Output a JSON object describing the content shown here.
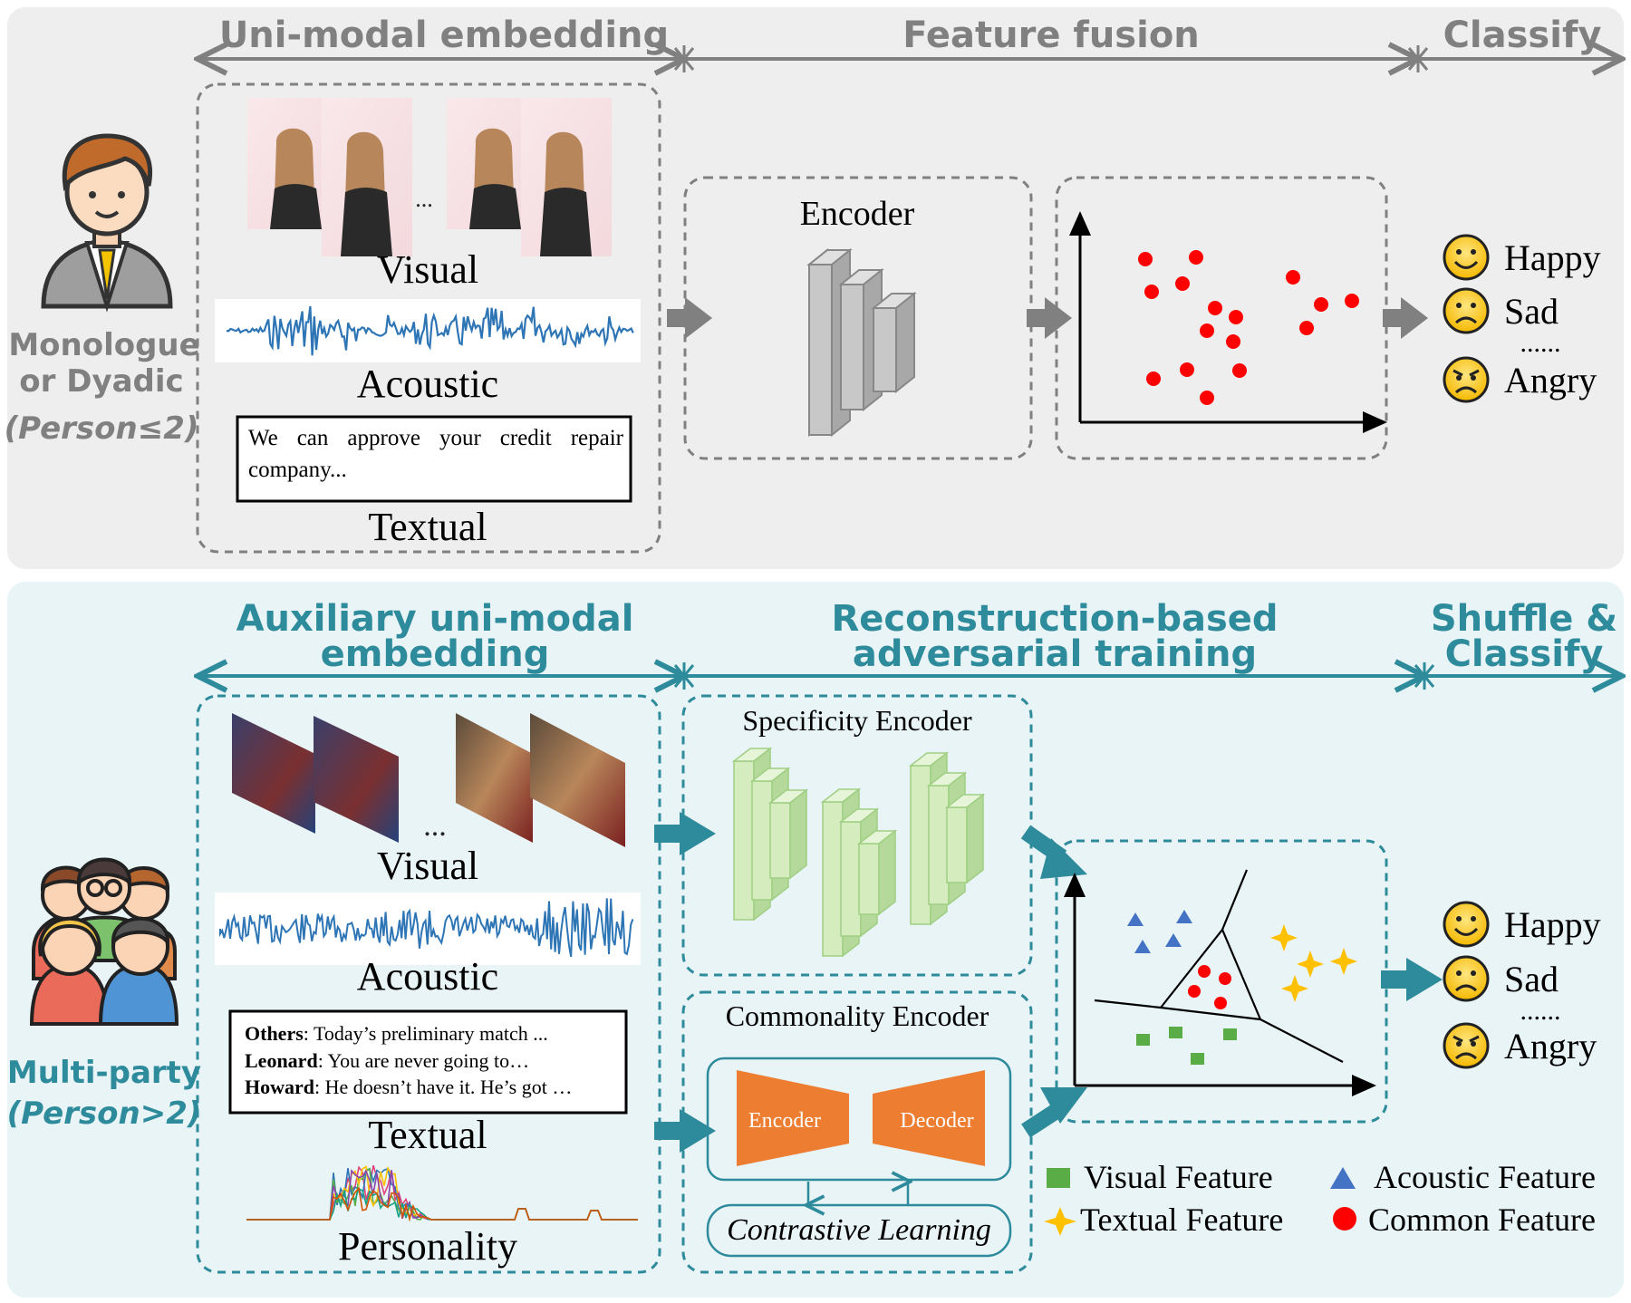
{
  "colors": {
    "top_panel_bg": "#eeeeee",
    "bottom_panel_bg": "#e9f4f7",
    "top_accent": "#808080",
    "bottom_accent": "#2e8b9b",
    "encoder_gray": "#c8c8c8",
    "encoder_green": "#cfe8b8",
    "autoencoder_orange": "#ed7d31",
    "point_red": "#ff0000",
    "feature_green": "#5aad46",
    "feature_blue": "#4472c4",
    "feature_gold": "#ffc000",
    "waveform_blue": "#2e75b6"
  },
  "top": {
    "stages": {
      "embedding": "Uni-modal embedding",
      "fusion": "Feature fusion",
      "classify": "Classify"
    },
    "person_icon": "man-avatar-icon",
    "person_label_line1": "Monologue",
    "person_label_line2": "or Dyadic",
    "person_label_line3": "(Person≤2)",
    "visual_label": "Visual",
    "frames_ellipsis": "...",
    "acoustic_label": "Acoustic",
    "text_sample": "We can approve your credit repair company...",
    "textual_label": "Textual",
    "encoder_label": "Encoder",
    "emotions": [
      "Happy",
      "Sad",
      "Angry"
    ],
    "emotions_ellipsis": "......"
  },
  "bottom": {
    "stages": {
      "embedding_line1": "Auxiliary uni-modal",
      "embedding_line2": "embedding",
      "training_line1": "Reconstruction-based",
      "training_line2": "adversarial training",
      "classify_line1": "Shuffle &",
      "classify_line2": "Classify"
    },
    "people_icon": "group-avatar-icon",
    "person_label_line1": "Multi-party",
    "person_label_line2": "(Person>2)",
    "visual_label": "Visual",
    "frames_ellipsis": "...",
    "acoustic_label": "Acoustic",
    "dialogue": [
      {
        "speaker": "Others",
        "text": ": Today’s preliminary match ..."
      },
      {
        "speaker": "Leonard",
        "text": ": You are never going to…"
      },
      {
        "speaker": "Howard",
        "text": ": He doesn’t have it. He’s got …"
      }
    ],
    "textual_label": "Textual",
    "personality_label": "Personality",
    "specificity_label": "Specificity Encoder",
    "commonality_label": "Commonality Encoder",
    "ae_encoder_label": "Encoder",
    "ae_decoder_label": "Decoder",
    "contrastive_label": "Contrastive Learning",
    "emotions": [
      "Happy",
      "Sad",
      "Angry"
    ],
    "emotions_ellipsis": "......"
  },
  "legend": {
    "visual": "Visual Feature",
    "acoustic": "Acoustic Feature",
    "textual": "Textual Feature",
    "common": "Common Feature"
  }
}
